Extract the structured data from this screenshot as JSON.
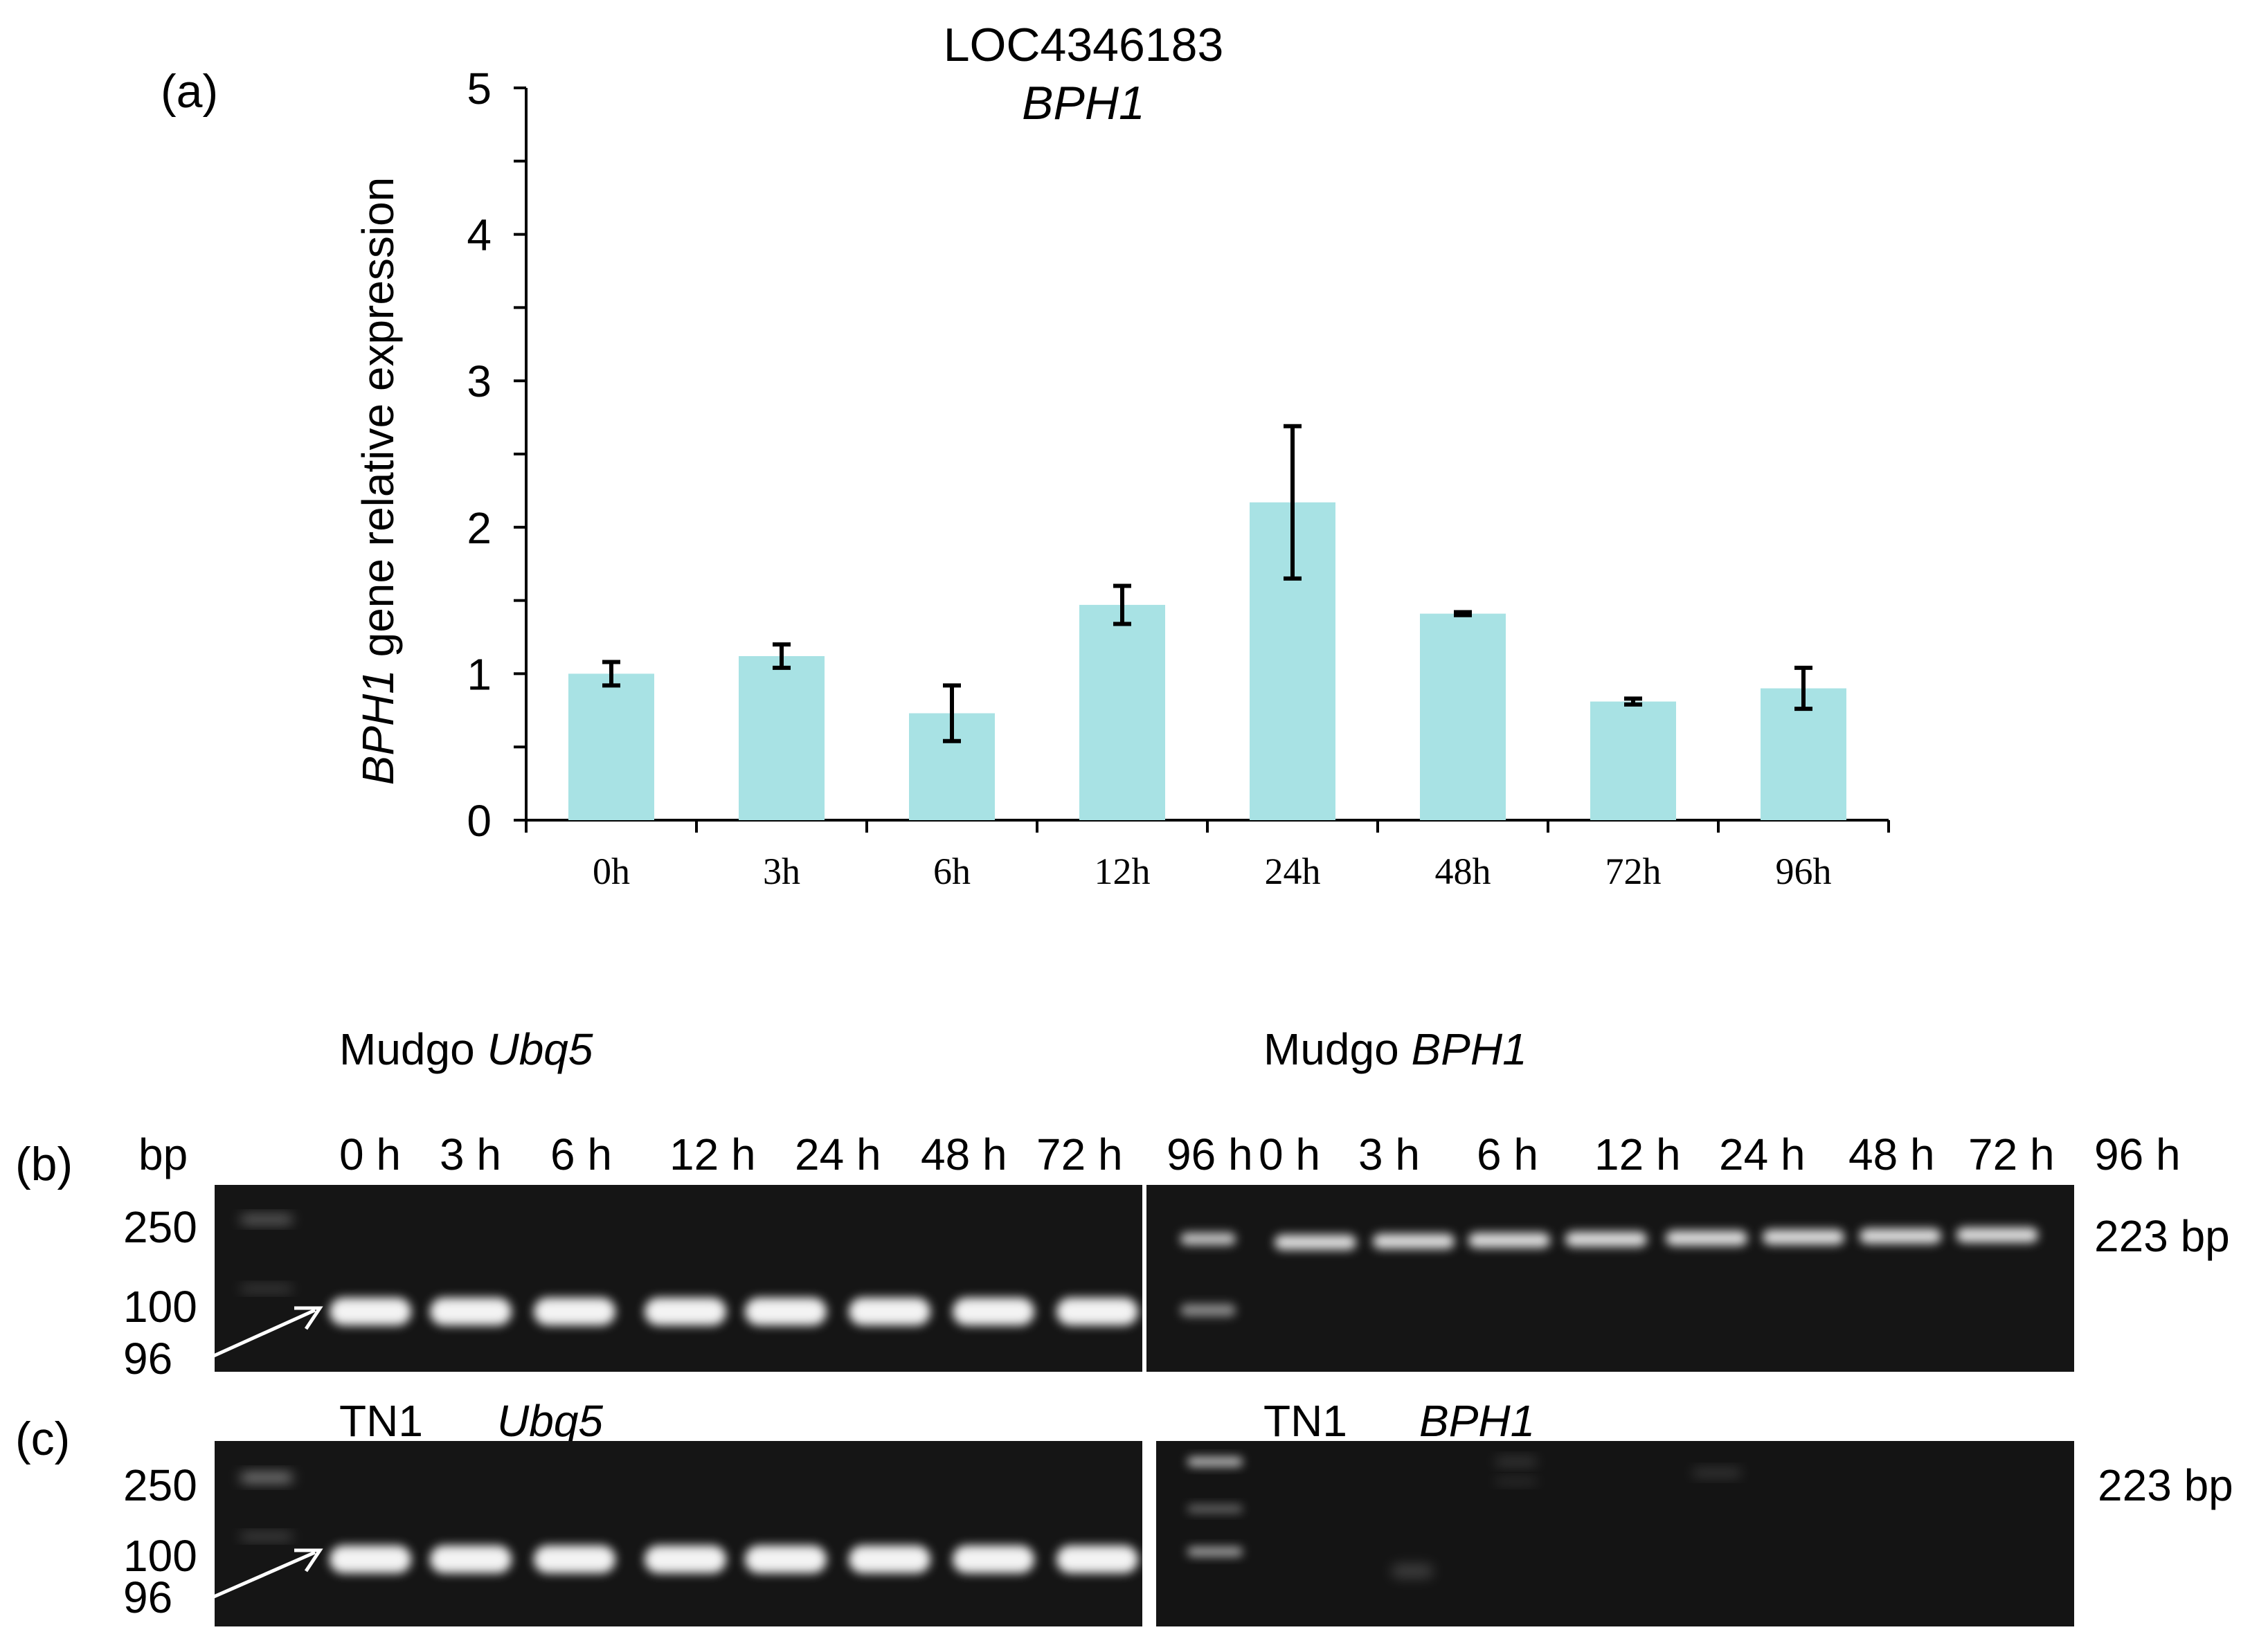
{
  "panel_a_label": "(a)",
  "panel_b_label": "(b)",
  "panel_c_label": "(c)",
  "chart_data": {
    "type": "bar",
    "title_line1": "LOC4346183",
    "title_line2": "BPH1",
    "ylabel_italic": "BPH1",
    "ylabel_rest": " gene  relative expression",
    "xlabel": "",
    "categories": [
      "0h",
      "3h",
      "6h",
      "12h",
      "24h",
      "48h",
      "72h",
      "96h"
    ],
    "values": [
      1.0,
      1.12,
      0.73,
      1.47,
      2.17,
      1.41,
      0.81,
      0.9
    ],
    "errors": [
      0.08,
      0.08,
      0.19,
      0.13,
      0.52,
      0.01,
      0.02,
      0.14
    ],
    "ylim": [
      0,
      5
    ],
    "yticks": [
      0,
      1,
      2,
      3,
      4,
      5
    ],
    "bar_color": "#a8e2e4",
    "grid": false,
    "legend": "none"
  },
  "gels": {
    "bp_label": "bp",
    "b_left_title": {
      "plain": "Mudgo ",
      "italic": "Ubq5"
    },
    "b_right_title": {
      "plain": "Mudgo ",
      "italic": "BPH1"
    },
    "c_left_title": {
      "plain": "TN1",
      "italic": "Ubq5"
    },
    "c_right_title": {
      "plain": "TN1",
      "italic": "BPH1"
    },
    "lane_labels": [
      "0 h",
      "3 h",
      "6 h",
      "12 h",
      "24 h",
      "48 h",
      "72 h",
      "96 h"
    ],
    "ladder_250": "250",
    "ladder_100": "100",
    "marker_96": "96",
    "product_223": "223 bp"
  }
}
